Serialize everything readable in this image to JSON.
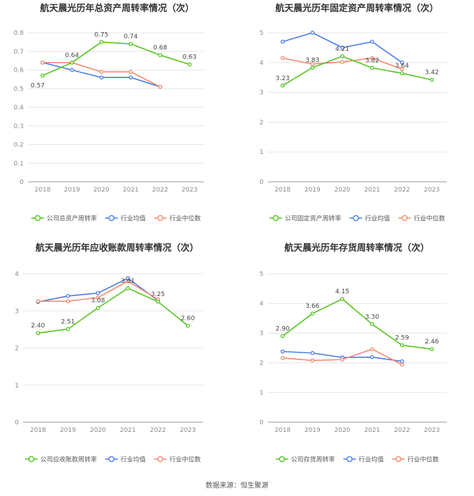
{
  "source": "数据来源：恒生聚源",
  "charts": [
    {
      "title": "航天晨光历年总资产周转率情况（次）",
      "chart_data": {
        "type": "line",
        "categories": [
          "2018",
          "2019",
          "2020",
          "2021",
          "2022",
          "2023"
        ],
        "ylim": [
          0,
          0.8
        ],
        "yticks": [
          "0",
          "0.1",
          "0.2",
          "0.3",
          "0.4",
          "0.5",
          "0.6",
          "0.7",
          "0.8"
        ],
        "grid": true,
        "legend": "bottom",
        "series": [
          {
            "name": "公司总资产周转率",
            "color": "#52c41a",
            "values": [
              0.57,
              0.64,
              0.75,
              0.74,
              0.68,
              0.63
            ],
            "labels": [
              "0.57",
              "0.64",
              "0.75",
              "0.74",
              "0.68",
              "0.63"
            ]
          },
          {
            "name": "行业均值",
            "color": "#4b7be5",
            "values": [
              0.64,
              0.6,
              0.56,
              0.56,
              0.51,
              null
            ]
          },
          {
            "name": "行业中位数",
            "color": "#f4896b",
            "values": [
              0.64,
              0.64,
              0.59,
              0.59,
              0.51,
              null
            ]
          }
        ]
      }
    },
    {
      "title": "航天晨光历年固定资产周转率情况（次）",
      "chart_data": {
        "type": "line",
        "categories": [
          "2018",
          "2019",
          "2020",
          "2021",
          "2022",
          "2023"
        ],
        "ylim": [
          0,
          5
        ],
        "yticks": [
          "0",
          "1",
          "2",
          "3",
          "4",
          "5"
        ],
        "grid": true,
        "legend": "bottom",
        "series": [
          {
            "name": "公司固定资产周转率",
            "color": "#52c41a",
            "values": [
              3.23,
              3.83,
              4.21,
              3.82,
              3.64,
              3.42
            ],
            "labels": [
              "3.23",
              "3.83",
              "4.21",
              "3.82",
              "3.64",
              "3.42"
            ]
          },
          {
            "name": "行业均值",
            "color": "#4b7be5",
            "values": [
              4.7,
              5.0,
              4.5,
              4.7,
              4.0,
              null
            ]
          },
          {
            "name": "行业中位数",
            "color": "#f4896b",
            "values": [
              4.15,
              3.95,
              4.02,
              4.15,
              3.78,
              null
            ]
          }
        ]
      }
    },
    {
      "title": "航天晨光历年应收账款周转率情况（次）",
      "chart_data": {
        "type": "line",
        "categories": [
          "2018",
          "2019",
          "2020",
          "2021",
          "2022",
          "2023"
        ],
        "ylim": [
          0,
          4
        ],
        "yticks": [
          "0",
          "1",
          "2",
          "3",
          "4"
        ],
        "grid": true,
        "legend": "bottom",
        "series": [
          {
            "name": "公司应收账款周转率",
            "color": "#52c41a",
            "values": [
              2.4,
              2.51,
              3.08,
              3.61,
              3.25,
              2.6
            ],
            "labels": [
              "2.40",
              "2.51",
              "3.08",
              "3.61",
              "3.25",
              "2.60"
            ]
          },
          {
            "name": "行业均值",
            "color": "#4b7be5",
            "values": [
              3.24,
              3.4,
              3.48,
              3.88,
              3.28,
              null
            ]
          },
          {
            "name": "行业中位数",
            "color": "#f4896b",
            "values": [
              3.26,
              3.26,
              3.36,
              3.8,
              3.31,
              null
            ]
          }
        ]
      }
    },
    {
      "title": "航天晨光历年存货周转率情况（次）",
      "chart_data": {
        "type": "line",
        "categories": [
          "2018",
          "2019",
          "2020",
          "2021",
          "2022",
          "2023"
        ],
        "ylim": [
          0,
          5
        ],
        "yticks": [
          "0",
          "1",
          "2",
          "3",
          "4",
          "5"
        ],
        "grid": true,
        "legend": "bottom",
        "series": [
          {
            "name": "公司存货周转率",
            "color": "#52c41a",
            "values": [
              2.9,
              3.66,
              4.15,
              3.3,
              2.59,
              2.46
            ],
            "labels": [
              "2.90",
              "3.66",
              "4.15",
              "3.30",
              "2.59",
              "2.46"
            ]
          },
          {
            "name": "行业均值",
            "color": "#4b7be5",
            "values": [
              2.38,
              2.33,
              2.18,
              2.19,
              2.05,
              null
            ]
          },
          {
            "name": "行业中位数",
            "color": "#f4896b",
            "values": [
              2.16,
              2.08,
              2.11,
              2.46,
              1.94,
              null
            ]
          }
        ]
      }
    }
  ]
}
